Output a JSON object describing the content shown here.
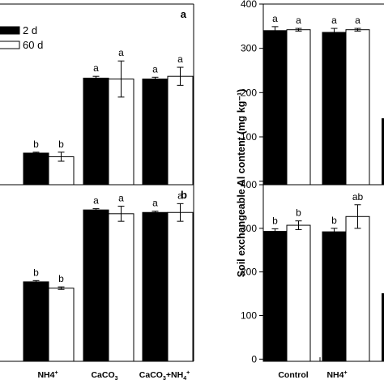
{
  "chart_data": [
    {
      "type": "bar",
      "panel_label": "a",
      "categories": [
        "",
        "NH4+",
        "CaCO3",
        "CaCO3+NH4+"
      ],
      "series": [
        {
          "name": "2 d",
          "color": "#000000",
          "values": [
            null,
            3.5,
            11.8,
            11.7
          ],
          "errors": [
            null,
            0.1,
            0.2,
            0.2
          ]
        },
        {
          "name": "60 d",
          "color": "#ffffff",
          "values": [
            null,
            3.1,
            11.7,
            12.0
          ],
          "errors": [
            null,
            0.5,
            2.0,
            1.0
          ]
        }
      ],
      "letters": [
        [
          null,
          "b",
          "a",
          "a"
        ],
        [
          null,
          "b",
          "a",
          "a"
        ]
      ],
      "ylim": [
        0,
        20
      ]
    },
    {
      "type": "bar",
      "panel_label": "b",
      "categories": [
        "",
        "NH4+",
        "CaCO3",
        "CaCO3+NH4+"
      ],
      "series": [
        {
          "name": "2 d",
          "color": "#000000",
          "values": [
            null,
            6.3,
            12.0,
            11.8
          ],
          "errors": [
            null,
            0.1,
            0.1,
            0.1
          ]
        },
        {
          "name": "60 d",
          "color": "#ffffff",
          "values": [
            null,
            5.8,
            11.7,
            11.8
          ],
          "errors": [
            null,
            0.1,
            0.6,
            0.7
          ]
        }
      ],
      "letters": [
        [
          null,
          "b",
          "a",
          "a"
        ],
        [
          null,
          "b",
          "a",
          "a"
        ]
      ],
      "ylim": [
        0,
        14
      ]
    },
    {
      "type": "bar",
      "categories": [
        "Control",
        "NH4+",
        ""
      ],
      "series": [
        {
          "name": "2 d",
          "color": "#000000",
          "values": [
            340,
            336,
            null
          ],
          "errors": [
            9,
            9,
            null
          ]
        },
        {
          "name": "60 d",
          "color": "#ffffff",
          "values": [
            342,
            342,
            null
          ],
          "errors": [
            3,
            3,
            null
          ]
        }
      ],
      "letters": [
        [
          "a",
          "a",
          null
        ],
        [
          "a",
          "a",
          null
        ]
      ],
      "yticks": [
        0,
        100,
        200,
        300,
        400
      ],
      "ylim": [
        0,
        400
      ]
    },
    {
      "type": "bar",
      "categories": [
        "Control",
        "NH4+",
        ""
      ],
      "series": [
        {
          "name": "2 d",
          "color": "#000000",
          "values": [
            293,
            292,
            null
          ],
          "errors": [
            6,
            8,
            null
          ]
        },
        {
          "name": "60 d",
          "color": "#ffffff",
          "values": [
            307,
            327,
            null
          ],
          "errors": [
            10,
            27,
            null
          ]
        }
      ],
      "letters": [
        [
          "b",
          "b",
          null
        ],
        [
          "b",
          "ab",
          null
        ]
      ],
      "yticks": [
        0,
        100,
        200,
        300,
        400
      ],
      "ylim": [
        0,
        400
      ]
    }
  ],
  "legend": {
    "items": [
      "2 d",
      "60 d"
    ],
    "placement": "top-left"
  },
  "ylabel_right": "Soil exchangeable Al content (mg kg⁻¹)",
  "category_labels": {
    "nh4_main": "NH4",
    "nh4_sup": "+",
    "caco3_main": "CaCO",
    "caco3_sub": "3",
    "combo_a": "CaCO",
    "combo_b": "3",
    "combo_c": "+NH",
    "combo_d": "4",
    "combo_e": "+",
    "control": "Control"
  }
}
